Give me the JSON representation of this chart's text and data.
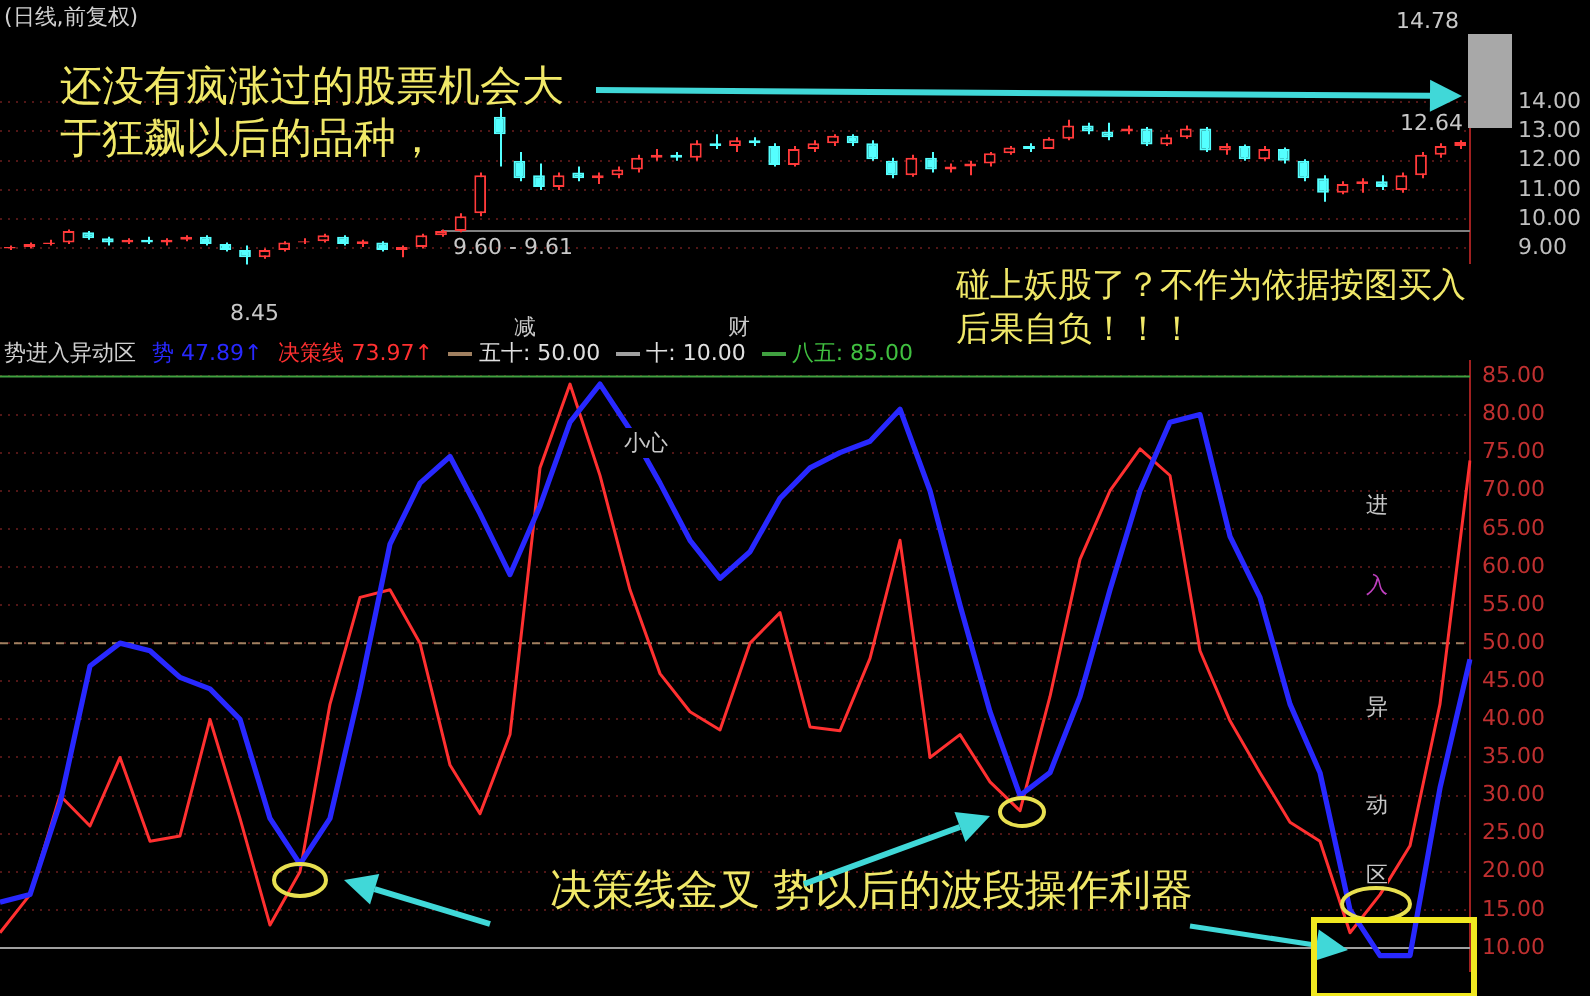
{
  "chart_data": [
    {
      "type": "candlestick",
      "title": "(日线,前复权)",
      "categories": [
        null,
        null,
        null,
        null,
        null,
        null,
        null,
        null,
        null,
        null,
        null,
        null,
        null,
        null,
        null,
        null,
        null,
        null,
        null,
        null,
        null,
        null,
        null,
        null,
        null,
        null,
        null,
        null,
        null,
        null,
        null,
        null,
        null,
        null,
        null,
        null,
        null,
        null,
        null,
        null,
        null,
        null,
        null,
        null,
        null,
        null,
        null,
        null,
        null,
        null,
        null,
        null,
        null,
        null,
        null,
        null,
        null,
        null,
        null,
        null,
        null,
        null,
        null,
        null,
        null,
        null,
        null,
        null,
        null,
        null,
        null,
        null,
        null,
        null,
        null
      ],
      "ohlc": [
        [
          9.0,
          9.1,
          8.95,
          9.05
        ],
        [
          9.05,
          9.2,
          9.0,
          9.15
        ],
        [
          9.15,
          9.3,
          9.1,
          9.2
        ],
        [
          9.2,
          9.65,
          9.15,
          9.6
        ],
        [
          9.55,
          9.6,
          9.3,
          9.35
        ],
        [
          9.35,
          9.4,
          9.1,
          9.2
        ],
        [
          9.2,
          9.35,
          9.15,
          9.3
        ],
        [
          9.3,
          9.4,
          9.15,
          9.2
        ],
        [
          9.2,
          9.35,
          9.1,
          9.3
        ],
        [
          9.3,
          9.45,
          9.25,
          9.4
        ],
        [
          9.4,
          9.45,
          9.1,
          9.15
        ],
        [
          9.15,
          9.2,
          8.9,
          8.95
        ],
        [
          8.95,
          9.1,
          8.45,
          8.7
        ],
        [
          8.7,
          9.0,
          8.65,
          8.95
        ],
        [
          8.95,
          9.25,
          8.9,
          9.2
        ],
        [
          9.2,
          9.35,
          9.15,
          9.25
        ],
        [
          9.25,
          9.5,
          9.2,
          9.45
        ],
        [
          9.4,
          9.45,
          9.1,
          9.15
        ],
        [
          9.15,
          9.3,
          9.05,
          9.25
        ],
        [
          9.2,
          9.25,
          8.9,
          8.95
        ],
        [
          8.95,
          9.1,
          8.7,
          9.05
        ],
        [
          9.05,
          9.5,
          9.0,
          9.45
        ],
        [
          9.45,
          9.65,
          9.4,
          9.6
        ],
        [
          9.6,
          10.2,
          9.55,
          10.1
        ],
        [
          10.2,
          11.6,
          10.1,
          11.5
        ],
        [
          13.5,
          13.8,
          11.8,
          12.9
        ],
        [
          12.0,
          12.3,
          11.3,
          11.4
        ],
        [
          11.5,
          11.9,
          11.0,
          11.1
        ],
        [
          11.1,
          11.6,
          11.0,
          11.5
        ],
        [
          11.6,
          11.8,
          11.3,
          11.4
        ],
        [
          11.4,
          11.6,
          11.2,
          11.5
        ],
        [
          11.5,
          11.8,
          11.4,
          11.7
        ],
        [
          11.7,
          12.2,
          11.6,
          12.1
        ],
        [
          12.1,
          12.4,
          12.0,
          12.2
        ],
        [
          12.2,
          12.3,
          12.0,
          12.1
        ],
        [
          12.1,
          12.7,
          12.0,
          12.6
        ],
        [
          12.6,
          12.9,
          12.4,
          12.5
        ],
        [
          12.5,
          12.8,
          12.3,
          12.7
        ],
        [
          12.7,
          12.8,
          12.5,
          12.6
        ],
        [
          12.5,
          12.6,
          11.8,
          11.85
        ],
        [
          11.85,
          12.5,
          11.8,
          12.4
        ],
        [
          12.4,
          12.7,
          12.3,
          12.6
        ],
        [
          12.6,
          12.9,
          12.5,
          12.85
        ],
        [
          12.85,
          12.9,
          12.5,
          12.6
        ],
        [
          12.6,
          12.7,
          12.0,
          12.05
        ],
        [
          12.0,
          12.1,
          11.4,
          11.5
        ],
        [
          11.5,
          12.2,
          11.45,
          12.1
        ],
        [
          12.1,
          12.3,
          11.6,
          11.7
        ],
        [
          11.7,
          11.9,
          11.6,
          11.8
        ],
        [
          11.8,
          12.0,
          11.5,
          11.9
        ],
        [
          11.9,
          12.3,
          11.8,
          12.25
        ],
        [
          12.25,
          12.5,
          12.2,
          12.45
        ],
        [
          12.5,
          12.6,
          12.3,
          12.4
        ],
        [
          12.4,
          12.8,
          12.4,
          12.75
        ],
        [
          12.75,
          13.4,
          12.7,
          13.2
        ],
        [
          13.2,
          13.3,
          12.9,
          13.0
        ],
        [
          13.0,
          13.3,
          12.7,
          12.8
        ],
        [
          13.0,
          13.2,
          12.9,
          13.1
        ],
        [
          13.1,
          13.15,
          12.5,
          12.55
        ],
        [
          12.55,
          12.9,
          12.5,
          12.8
        ],
        [
          12.8,
          13.2,
          12.75,
          13.1
        ],
        [
          13.1,
          13.15,
          12.3,
          12.35
        ],
        [
          12.35,
          12.6,
          12.2,
          12.5
        ],
        [
          12.5,
          12.55,
          12.0,
          12.05
        ],
        [
          12.05,
          12.5,
          12.0,
          12.4
        ],
        [
          12.4,
          12.45,
          11.9,
          12.0
        ],
        [
          12.0,
          12.05,
          11.3,
          11.4
        ],
        [
          11.4,
          11.5,
          10.6,
          10.9
        ],
        [
          10.9,
          11.3,
          10.85,
          11.2
        ],
        [
          11.2,
          11.4,
          10.9,
          11.3
        ],
        [
          11.3,
          11.5,
          11.0,
          11.1
        ],
        [
          11.0,
          11.6,
          10.9,
          11.5
        ],
        [
          11.5,
          12.3,
          11.4,
          12.2
        ],
        [
          12.2,
          12.6,
          12.1,
          12.5
        ],
        [
          12.5,
          12.7,
          12.4,
          12.64
        ]
      ],
      "ylim": [
        8.1,
        15.4
      ],
      "yticks": [
        {
          "value": 9,
          "label": "9.00"
        },
        {
          "value": 10,
          "label": "10.00"
        },
        {
          "value": 11,
          "label": "11.00"
        },
        {
          "value": 12,
          "label": "12.00"
        },
        {
          "value": 13,
          "label": "13.00"
        },
        {
          "value": 14,
          "label": "14.00"
        }
      ],
      "grid": "y",
      "tick_labels": "y",
      "ref_lines": [
        {
          "axis": "y",
          "value": 9.6,
          "label": "9.60 - 9.61",
          "color": "#808080"
        }
      ],
      "annotations": [
        "还没有疯涨过的股票机会大于狂飙以后的品种，",
        "碰上妖股了？不作为依据按图买入后果自负！！！",
        "8.45",
        "14.78",
        "12.64",
        "减",
        "财"
      ]
    },
    {
      "type": "line",
      "title": "势进入异动区",
      "categories": [
        null,
        null,
        null,
        null,
        null,
        null,
        null,
        null,
        null,
        null,
        null,
        null,
        null,
        null,
        null,
        null,
        null,
        null,
        null,
        null,
        null,
        null,
        null,
        null,
        null,
        null,
        null,
        null,
        null,
        null,
        null,
        null,
        null,
        null,
        null,
        null,
        null,
        null,
        null,
        null,
        null,
        null,
        null,
        null,
        null,
        null,
        null,
        null,
        null,
        null
      ],
      "series": [
        {
          "name": "势",
          "color": "#2828ff",
          "values": [
            16,
            17,
            29,
            47,
            50,
            49,
            45.5,
            44,
            40,
            27,
            21,
            27,
            44,
            63,
            71,
            74.5,
            67,
            59,
            68,
            79,
            84,
            78,
            71,
            63.5,
            58.5,
            62,
            69,
            73,
            75,
            76.5,
            80.7,
            70,
            55,
            41,
            30,
            33,
            43,
            57,
            70,
            79,
            80,
            64,
            56,
            42,
            33,
            15,
            9,
            9,
            31,
            47.89
          ]
        },
        {
          "name": "决策线",
          "color": "#ff3030",
          "values": [
            12,
            17,
            30,
            26,
            35,
            24,
            24.7,
            40,
            27,
            13,
            20,
            42,
            56,
            57,
            50,
            34,
            27.6,
            38,
            73,
            84,
            72,
            57,
            46,
            41,
            38.6,
            50,
            54,
            39,
            38.5,
            48,
            63.5,
            35,
            38,
            31.8,
            28,
            43,
            61,
            70,
            75.5,
            72,
            49,
            39.8,
            33,
            26.5,
            24,
            12,
            17,
            23.4,
            42,
            73.97
          ]
        }
      ],
      "ylim": [
        7,
        87
      ],
      "yticks": [
        {
          "value": 10,
          "label": "10.00"
        },
        {
          "value": 15,
          "label": "15.00"
        },
        {
          "value": 20,
          "label": "20.00"
        },
        {
          "value": 25,
          "label": "25.00"
        },
        {
          "value": 30,
          "label": "30.00"
        },
        {
          "value": 35,
          "label": "35.00"
        },
        {
          "value": 40,
          "label": "40.00"
        },
        {
          "value": 45,
          "label": "45.00"
        },
        {
          "value": 50,
          "label": "50.00"
        },
        {
          "value": 55,
          "label": "55.00"
        },
        {
          "value": 60,
          "label": "60.00"
        },
        {
          "value": 65,
          "label": "65.00"
        },
        {
          "value": 70,
          "label": "70.00"
        },
        {
          "value": 75,
          "label": "75.00"
        },
        {
          "value": 80,
          "label": "80.00"
        },
        {
          "value": 85,
          "label": "85.00"
        }
      ],
      "grid": "y",
      "tick_labels": "y",
      "legend": "top left",
      "marker": "none",
      "ref_lines": [
        {
          "axis": "y",
          "value": 50,
          "label": "五十: 50.00",
          "color": "#a08060",
          "line_style": "dashed"
        },
        {
          "axis": "y",
          "value": 10,
          "label": "十: 10.00",
          "color": "#a0a0a0"
        },
        {
          "axis": "y",
          "value": 85,
          "label": "八五: 85.00",
          "color": "#40a040"
        }
      ],
      "annotations": [
        "47.89↑",
        "73.97↑",
        "小心",
        "进",
        "入",
        "异",
        "动",
        "区",
        "决策线金叉 势以后的波段操作利器"
      ]
    }
  ]
}
